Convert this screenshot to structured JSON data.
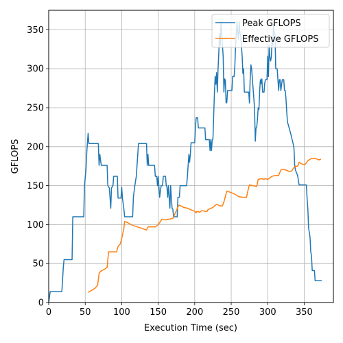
{
  "chart_data": {
    "type": "line",
    "title": "",
    "xlabel": "Execution Time (sec)",
    "ylabel": "GFLOPS",
    "xlim": [
      0,
      390
    ],
    "ylim": [
      0,
      375
    ],
    "xticks": [
      0,
      50,
      100,
      150,
      200,
      250,
      300,
      350
    ],
    "yticks": [
      0,
      50,
      100,
      150,
      200,
      250,
      300,
      350
    ],
    "grid": true,
    "legend_position": "top-right",
    "series": [
      {
        "name": "Peak GFLOPS",
        "color": "#1f77b4",
        "points": [
          [
            0,
            0
          ],
          [
            2,
            14
          ],
          [
            18,
            14
          ],
          [
            20,
            45
          ],
          [
            21,
            55
          ],
          [
            32,
            55
          ],
          [
            33,
            110
          ],
          [
            47,
            110
          ],
          [
            48,
            110
          ],
          [
            49,
            150
          ],
          [
            51,
            170
          ],
          [
            52,
            190
          ],
          [
            53,
            205
          ],
          [
            54,
            217
          ],
          [
            55,
            204
          ],
          [
            68,
            204
          ],
          [
            69,
            176
          ],
          [
            70,
            190
          ],
          [
            72,
            176
          ],
          [
            80,
            176
          ],
          [
            81,
            150
          ],
          [
            83,
            147
          ],
          [
            84,
            135
          ],
          [
            85,
            121
          ],
          [
            86,
            147
          ],
          [
            88,
            150
          ],
          [
            89,
            162
          ],
          [
            94,
            162
          ],
          [
            95,
            134
          ],
          [
            99,
            134
          ],
          [
            100,
            148
          ],
          [
            101,
            134
          ],
          [
            103,
            120
          ],
          [
            104,
            110
          ],
          [
            115,
            110
          ],
          [
            116,
            135
          ],
          [
            118,
            150
          ],
          [
            120,
            162
          ],
          [
            121,
            176
          ],
          [
            122,
            190
          ],
          [
            123,
            204
          ],
          [
            134,
            204
          ],
          [
            135,
            176
          ],
          [
            136,
            190
          ],
          [
            137,
            176
          ],
          [
            145,
            176
          ],
          [
            146,
            162
          ],
          [
            148,
            162
          ],
          [
            149,
            150
          ],
          [
            150,
            162
          ],
          [
            151,
            148
          ],
          [
            152,
            135
          ],
          [
            154,
            150
          ],
          [
            156,
            150
          ],
          [
            157,
            162
          ],
          [
            160,
            162
          ],
          [
            161,
            150
          ],
          [
            162,
            148
          ],
          [
            163,
            135
          ],
          [
            164,
            150
          ],
          [
            165,
            135
          ],
          [
            166,
            121
          ],
          [
            167,
            150
          ],
          [
            168,
            135
          ],
          [
            169,
            121
          ],
          [
            170,
            120
          ],
          [
            171,
            110
          ],
          [
            176,
            110
          ],
          [
            177,
            135
          ],
          [
            179,
            135
          ],
          [
            180,
            150
          ],
          [
            189,
            150
          ],
          [
            190,
            162
          ],
          [
            191,
            176
          ],
          [
            192,
            190
          ],
          [
            193,
            180
          ],
          [
            194,
            190
          ],
          [
            195,
            205
          ],
          [
            200,
            205
          ],
          [
            201,
            224
          ],
          [
            202,
            237
          ],
          [
            204,
            237
          ],
          [
            205,
            224
          ],
          [
            214,
            224
          ],
          [
            215,
            209
          ],
          [
            220,
            209
          ],
          [
            221,
            195
          ],
          [
            222,
            209
          ],
          [
            223,
            195
          ],
          [
            224,
            209
          ],
          [
            225,
            210
          ],
          [
            226,
            240
          ],
          [
            227,
            268
          ],
          [
            228,
            290
          ],
          [
            229,
            280
          ],
          [
            230,
            295
          ],
          [
            231,
            270
          ],
          [
            232,
            300
          ],
          [
            233,
            320
          ],
          [
            234,
            345
          ],
          [
            235,
            330
          ],
          [
            236,
            360
          ],
          [
            237,
            346
          ],
          [
            238,
            330
          ],
          [
            239,
            316
          ],
          [
            240,
            270
          ],
          [
            241,
            287
          ],
          [
            242,
            285
          ],
          [
            243,
            256
          ],
          [
            244,
            257
          ],
          [
            245,
            272
          ],
          [
            251,
            272
          ],
          [
            252,
            290
          ],
          [
            254,
            290
          ],
          [
            255,
            304
          ],
          [
            256,
            330
          ],
          [
            257,
            346
          ],
          [
            258,
            360
          ],
          [
            259,
            346
          ],
          [
            260,
            338
          ],
          [
            261,
            360
          ],
          [
            262,
            345
          ],
          [
            263,
            344
          ],
          [
            264,
            330
          ],
          [
            265,
            316
          ],
          [
            266,
            294
          ],
          [
            267,
            300
          ],
          [
            268,
            270
          ],
          [
            274,
            270
          ],
          [
            275,
            256
          ],
          [
            276,
            287
          ],
          [
            277,
            305
          ],
          [
            278,
            300
          ],
          [
            279,
            287
          ],
          [
            281,
            262
          ],
          [
            282,
            248
          ],
          [
            283,
            207
          ],
          [
            284,
            224
          ],
          [
            285,
            225
          ],
          [
            286,
            236
          ],
          [
            287,
            250
          ],
          [
            288,
            248
          ],
          [
            289,
            272
          ],
          [
            290,
            286
          ],
          [
            291,
            281
          ],
          [
            292,
            287
          ],
          [
            293,
            270
          ],
          [
            295,
            270
          ],
          [
            296,
            282
          ],
          [
            297,
            286
          ],
          [
            299,
            286
          ],
          [
            300,
            316
          ],
          [
            301,
            290
          ],
          [
            302,
            330
          ],
          [
            303,
            315
          ],
          [
            304,
            310
          ],
          [
            305,
            315
          ],
          [
            306,
            340
          ],
          [
            307,
            330
          ],
          [
            308,
            357
          ],
          [
            309,
            346
          ],
          [
            310,
            345
          ],
          [
            311,
            300
          ],
          [
            313,
            300
          ],
          [
            314,
            286
          ],
          [
            315,
            272
          ],
          [
            316,
            286
          ],
          [
            317,
            286
          ],
          [
            318,
            272
          ],
          [
            320,
            286
          ],
          [
            321,
            286
          ],
          [
            322,
            286
          ],
          [
            323,
            272
          ],
          [
            324,
            272
          ],
          [
            325,
            262
          ],
          [
            326,
            246
          ],
          [
            327,
            232
          ],
          [
            330,
            222
          ],
          [
            332,
            215
          ],
          [
            335,
            203
          ],
          [
            336,
            198
          ],
          [
            337,
            176
          ],
          [
            338,
            170
          ],
          [
            341,
            163
          ],
          [
            343,
            151
          ],
          [
            353,
            151
          ],
          [
            354,
            133
          ],
          [
            355,
            120
          ],
          [
            356,
            96
          ],
          [
            357,
            90
          ],
          [
            358,
            84
          ],
          [
            359,
            65
          ],
          [
            360,
            60
          ],
          [
            361,
            41
          ],
          [
            364,
            41
          ],
          [
            365,
            28
          ],
          [
            374,
            28
          ]
        ]
      },
      {
        "name": "Effective GFLOPS",
        "color": "#ff7f0e",
        "points": [
          [
            54,
            13
          ],
          [
            63,
            18
          ],
          [
            67,
            22
          ],
          [
            69,
            37
          ],
          [
            71,
            40
          ],
          [
            77,
            43
          ],
          [
            80,
            45
          ],
          [
            82,
            65
          ],
          [
            93,
            65
          ],
          [
            95,
            72
          ],
          [
            98,
            75
          ],
          [
            100,
            82
          ],
          [
            103,
            95
          ],
          [
            104,
            104
          ],
          [
            107,
            103
          ],
          [
            115,
            99
          ],
          [
            125,
            96
          ],
          [
            134,
            93
          ],
          [
            136,
            97
          ],
          [
            146,
            97
          ],
          [
            150,
            100
          ],
          [
            153,
            104
          ],
          [
            155,
            107
          ],
          [
            160,
            106
          ],
          [
            170,
            108
          ],
          [
            175,
            118
          ],
          [
            177,
            123
          ],
          [
            179,
            125
          ],
          [
            185,
            122
          ],
          [
            190,
            121
          ],
          [
            195,
            119
          ],
          [
            200,
            117
          ],
          [
            202,
            115
          ],
          [
            203,
            117
          ],
          [
            207,
            116
          ],
          [
            210,
            118
          ],
          [
            214,
            117
          ],
          [
            217,
            117
          ],
          [
            218,
            119
          ],
          [
            220,
            120
          ],
          [
            225,
            122
          ],
          [
            227,
            124
          ],
          [
            230,
            126
          ],
          [
            235,
            124
          ],
          [
            238,
            124
          ],
          [
            240,
            129
          ],
          [
            242,
            136
          ],
          [
            244,
            143
          ],
          [
            250,
            141
          ],
          [
            255,
            139
          ],
          [
            260,
            136
          ],
          [
            266,
            135
          ],
          [
            271,
            135
          ],
          [
            273,
            144
          ],
          [
            275,
            151
          ],
          [
            280,
            150
          ],
          [
            285,
            149
          ],
          [
            287,
            158
          ],
          [
            292,
            159
          ],
          [
            295,
            158
          ],
          [
            297,
            159
          ],
          [
            300,
            158
          ],
          [
            306,
            162
          ],
          [
            310,
            163
          ],
          [
            315,
            163
          ],
          [
            318,
            170
          ],
          [
            320,
            171
          ],
          [
            325,
            170
          ],
          [
            330,
            168
          ],
          [
            333,
            169
          ],
          [
            335,
            172
          ],
          [
            338,
            175
          ],
          [
            341,
            175
          ],
          [
            343,
            180
          ],
          [
            346,
            178
          ],
          [
            350,
            177
          ],
          [
            352,
            178
          ],
          [
            355,
            182
          ],
          [
            360,
            185
          ],
          [
            365,
            185
          ],
          [
            370,
            183
          ],
          [
            373,
            184
          ]
        ]
      }
    ]
  }
}
